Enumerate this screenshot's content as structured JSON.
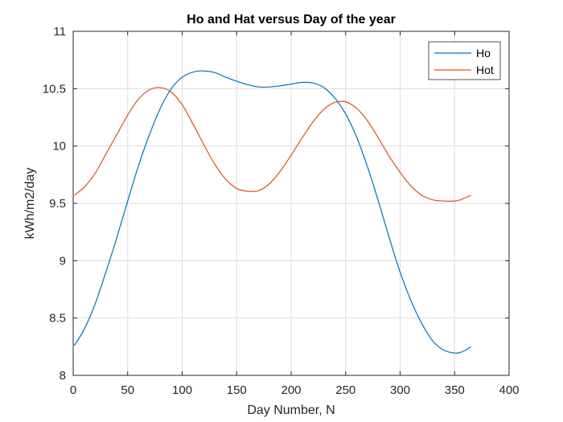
{
  "chart_data": {
    "type": "line",
    "title": "Ho and Hat versus Day of the year",
    "xlabel": "Day Number, N",
    "ylabel": "kWh/m2/day",
    "xlim": [
      0,
      400
    ],
    "ylim": [
      8,
      11
    ],
    "xticks": [
      0,
      50,
      100,
      150,
      200,
      250,
      300,
      350,
      400
    ],
    "yticks": [
      8,
      8.5,
      9,
      9.5,
      10,
      10.5,
      11
    ],
    "xtick_labels": [
      "0",
      "50",
      "100",
      "150",
      "200",
      "250",
      "300",
      "350",
      "400"
    ],
    "ytick_labels": [
      "8",
      "8.5",
      "9",
      "9.5",
      "10",
      "10.5",
      "11"
    ],
    "grid": true,
    "legend_position": "top-right",
    "series": [
      {
        "name": "Ho",
        "color": "#0072BD",
        "x": [
          1,
          10,
          20,
          30,
          40,
          50,
          60,
          70,
          80,
          90,
          100,
          110,
          120,
          130,
          140,
          150,
          160,
          170,
          180,
          190,
          200,
          210,
          220,
          230,
          240,
          250,
          260,
          270,
          280,
          290,
          300,
          310,
          320,
          330,
          340,
          350,
          355,
          360,
          365
        ],
        "y": [
          8.26,
          8.4,
          8.62,
          8.9,
          9.2,
          9.52,
          9.83,
          10.1,
          10.33,
          10.5,
          10.6,
          10.645,
          10.655,
          10.64,
          10.6,
          10.565,
          10.535,
          10.515,
          10.515,
          10.525,
          10.54,
          10.555,
          10.55,
          10.51,
          10.42,
          10.28,
          10.08,
          9.82,
          9.52,
          9.2,
          8.9,
          8.65,
          8.45,
          8.3,
          8.22,
          8.195,
          8.2,
          8.22,
          8.25
        ]
      },
      {
        "name": "Hot",
        "color": "#D95319",
        "x": [
          1,
          10,
          20,
          30,
          40,
          50,
          60,
          70,
          80,
          90,
          100,
          110,
          120,
          130,
          140,
          150,
          160,
          170,
          180,
          190,
          200,
          210,
          220,
          230,
          240,
          250,
          260,
          270,
          280,
          290,
          300,
          310,
          320,
          330,
          340,
          350,
          355,
          360,
          365
        ],
        "y": [
          9.57,
          9.64,
          9.76,
          9.93,
          10.1,
          10.27,
          10.41,
          10.49,
          10.51,
          10.47,
          10.36,
          10.19,
          10.01,
          9.84,
          9.71,
          9.63,
          9.605,
          9.61,
          9.67,
          9.78,
          9.92,
          10.07,
          10.21,
          10.32,
          10.38,
          10.385,
          10.33,
          10.22,
          10.07,
          9.91,
          9.77,
          9.65,
          9.57,
          9.53,
          9.52,
          9.52,
          9.53,
          9.55,
          9.57
        ]
      }
    ]
  }
}
